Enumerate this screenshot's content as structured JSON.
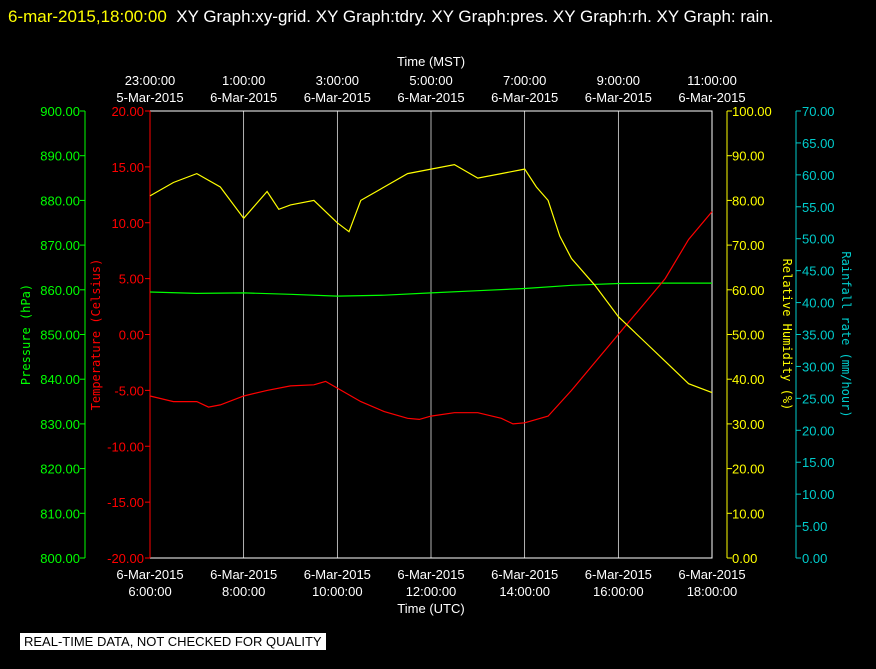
{
  "header": {
    "date_time": "6-mar-2015,18:00:00",
    "graph_list": "XY Graph:xy-grid.  XY Graph:tdry.  XY Graph:pres.  XY Graph:rh.  XY Graph: rain."
  },
  "footer": {
    "quality_note": "REAL-TIME DATA, NOT CHECKED FOR QUALITY"
  },
  "colors": {
    "pressure": "#00ff00",
    "temperature": "#ff0000",
    "humidity": "#ffff00",
    "rainfall": "#00cccc",
    "grid": "#ffffff"
  },
  "chart_data": {
    "type": "line",
    "x_axis_bottom": {
      "label": "Time (UTC)",
      "ticks": [
        {
          "date": "6-Mar-2015",
          "time": "6:00:00"
        },
        {
          "date": "6-Mar-2015",
          "time": "8:00:00"
        },
        {
          "date": "6-Mar-2015",
          "time": "10:00:00"
        },
        {
          "date": "6-Mar-2015",
          "time": "12:00:00"
        },
        {
          "date": "6-Mar-2015",
          "time": "14:00:00"
        },
        {
          "date": "6-Mar-2015",
          "time": "16:00:00"
        },
        {
          "date": "6-Mar-2015",
          "time": "18:00:00"
        }
      ],
      "range": [
        "6-Mar-2015 6:00:00",
        "6-Mar-2015 18:00:00"
      ]
    },
    "x_axis_top": {
      "label": "Time (MST)",
      "ticks": [
        {
          "time": "23:00:00",
          "date": "5-Mar-2015"
        },
        {
          "time": "1:00:00",
          "date": "6-Mar-2015"
        },
        {
          "time": "3:00:00",
          "date": "6-Mar-2015"
        },
        {
          "time": "5:00:00",
          "date": "6-Mar-2015"
        },
        {
          "time": "7:00:00",
          "date": "6-Mar-2015"
        },
        {
          "time": "9:00:00",
          "date": "6-Mar-2015"
        },
        {
          "time": "11:00:00",
          "date": "6-Mar-2015"
        }
      ]
    },
    "y_axes": {
      "pressure": {
        "label": "Pressure (hPa)",
        "range": [
          800,
          900
        ],
        "ticks": [
          "800.00",
          "810.00",
          "820.00",
          "830.00",
          "840.00",
          "850.00",
          "860.00",
          "870.00",
          "880.00",
          "890.00",
          "900.00"
        ]
      },
      "temperature": {
        "label": "Temperature (Celsius)",
        "range": [
          -20,
          20
        ],
        "ticks": [
          "-20.00",
          "-15.00",
          "-10.00",
          "-5.00",
          "0.00",
          "5.00",
          "10.00",
          "15.00",
          "20.00"
        ]
      },
      "humidity": {
        "label": "Relative Humidity (%)",
        "range": [
          0,
          100
        ],
        "ticks": [
          "0.00",
          "10.00",
          "20.00",
          "30.00",
          "40.00",
          "50.00",
          "60.00",
          "70.00",
          "80.00",
          "90.00",
          "100.00"
        ]
      },
      "rainfall": {
        "label": "Rainfall rate (mm/hour)",
        "range": [
          0,
          70
        ],
        "ticks": [
          "0.00",
          "5.00",
          "10.00",
          "15.00",
          "20.00",
          "25.00",
          "30.00",
          "35.00",
          "40.00",
          "45.00",
          "50.00",
          "55.00",
          "60.00",
          "65.00",
          "70.00"
        ]
      }
    },
    "grid": "vertical at each time tick",
    "series": [
      {
        "name": "pressure",
        "axis": "pressure",
        "x_hours_utc": [
          6,
          7,
          8,
          9,
          10,
          11,
          12,
          13,
          14,
          15,
          16,
          17,
          18
        ],
        "values": [
          859.5,
          859.2,
          859.3,
          859.0,
          858.6,
          858.8,
          859.3,
          859.8,
          860.3,
          861.0,
          861.4,
          861.5,
          861.5
        ]
      },
      {
        "name": "temperature",
        "axis": "temperature",
        "x_hours_utc": [
          6,
          6.5,
          7,
          7.25,
          7.5,
          8,
          8.5,
          9,
          9.5,
          9.75,
          10,
          10.5,
          11,
          11.5,
          11.75,
          12,
          12.5,
          13,
          13.5,
          13.75,
          14,
          14.5,
          15,
          15.5,
          16,
          16.5,
          17,
          17.5,
          18
        ],
        "values": [
          -5.5,
          -6.0,
          -6.0,
          -6.5,
          -6.3,
          -5.5,
          -5.0,
          -4.6,
          -4.5,
          -4.2,
          -4.8,
          -6.0,
          -6.9,
          -7.5,
          -7.6,
          -7.3,
          -7.0,
          -7.0,
          -7.5,
          -8.0,
          -7.9,
          -7.3,
          -5.0,
          -2.5,
          0.0,
          2.5,
          5.0,
          8.5,
          11.0
        ]
      },
      {
        "name": "relative humidity",
        "axis": "humidity",
        "x_hours_utc": [
          6,
          6.5,
          7,
          7.5,
          8,
          8.25,
          8.5,
          8.75,
          9,
          9.5,
          10,
          10.25,
          10.5,
          11,
          11.5,
          12,
          12.5,
          13,
          13.5,
          14,
          14.25,
          14.5,
          14.75,
          15,
          15.5,
          16,
          16.5,
          17,
          17.5,
          18
        ],
        "values": [
          81,
          84,
          86,
          83,
          76,
          79,
          82,
          78,
          79,
          80,
          75,
          73,
          80,
          83,
          86,
          87,
          88,
          85,
          86,
          87,
          83,
          80,
          72,
          67,
          61,
          54,
          49,
          44,
          39,
          37
        ]
      },
      {
        "name": "rainfall rate",
        "axis": "rainfall",
        "x_hours_utc": [],
        "values": []
      }
    ]
  }
}
